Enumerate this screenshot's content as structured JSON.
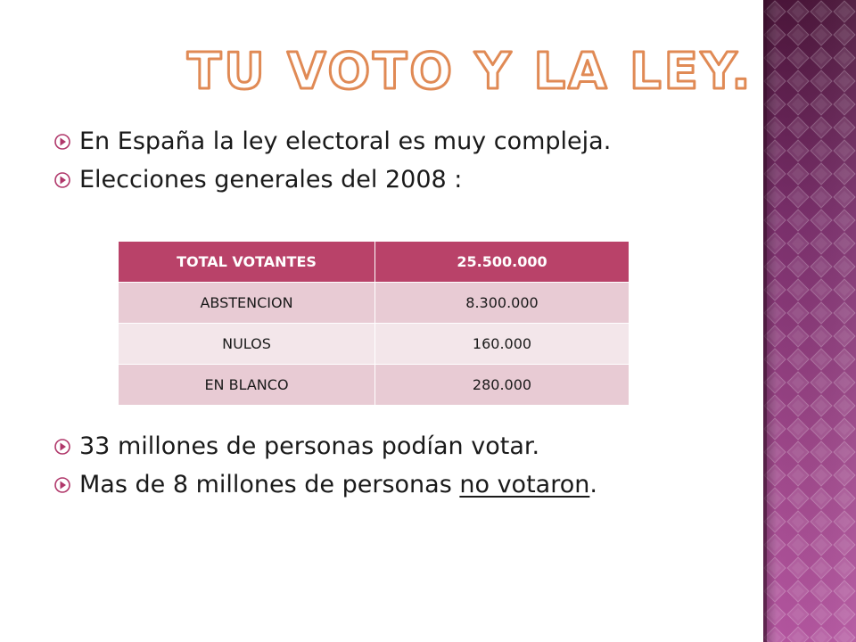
{
  "title": "TU VOTO Y LA LEY.",
  "bullets_top": [
    "En España la ley electoral es muy compleja.",
    "Elecciones generales del 2008 :"
  ],
  "table": {
    "header": [
      "TOTAL VOTANTES",
      "25.500.000"
    ],
    "rows": [
      [
        "ABSTENCION",
        "8.300.000"
      ],
      [
        "NULOS",
        "160.000"
      ],
      [
        "EN BLANCO",
        "280.000"
      ]
    ]
  },
  "bullets_bottom": {
    "item1": "33 millones de personas podían votar.",
    "item2_prefix": "Mas de 8 millones de personas ",
    "item2_underlined": "no votaron",
    "item2_suffix": "."
  },
  "colors": {
    "title_outline": "#e08a55",
    "bullet": "#b0376a",
    "table_header": "#b94269",
    "table_row_dark": "#e8cbd4",
    "table_row_light": "#f3e6ea",
    "panel_dark": "#4a1539",
    "panel_mid": "#a0498c",
    "panel_light": "#d77ac6"
  },
  "icons": {
    "bullet": "circled-arrow-bullet-icon"
  }
}
